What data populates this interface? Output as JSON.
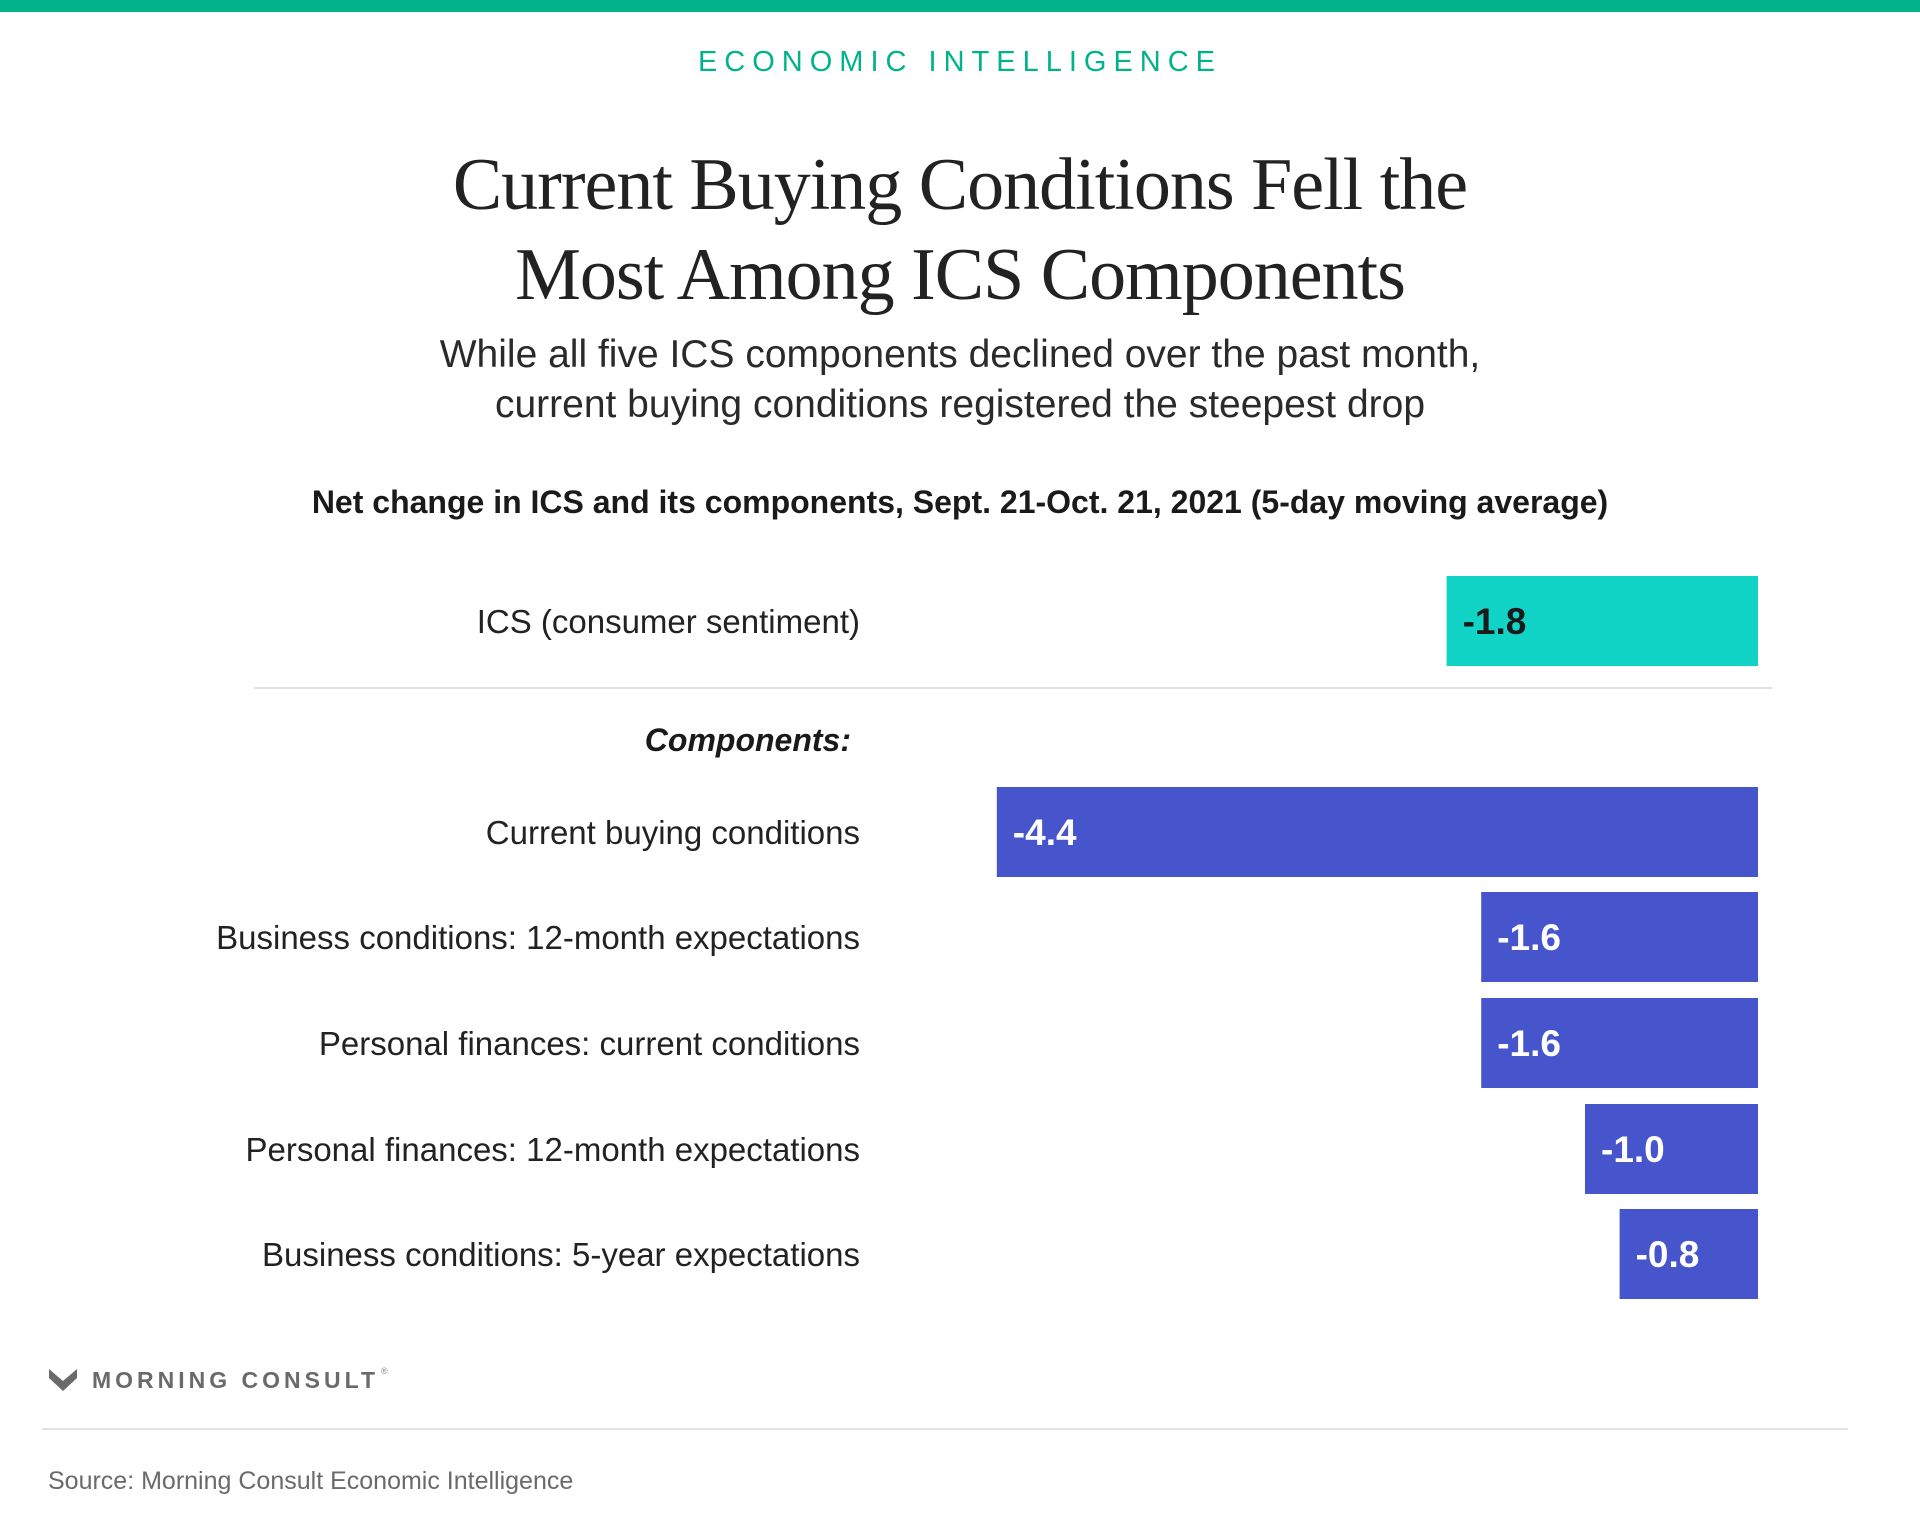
{
  "header": {
    "kicker": "ECONOMIC INTELLIGENCE",
    "title_lines": [
      "Current Buying Conditions Fell the",
      "Most Among ICS Components"
    ],
    "subtitle_lines": [
      "While all five ICS components declined over the past month,",
      "current buying conditions registered the steepest drop"
    ]
  },
  "colors": {
    "accent": "#00b38a",
    "ics_bar": "#12d4c6",
    "component_bar": "#4655cc",
    "divider": "#e2e2e2"
  },
  "chart_data": {
    "type": "bar",
    "orientation": "horizontal",
    "title": "Net change in ICS and its components, Sept. 21-Oct. 21, 2021 (5-day moving average)",
    "group_label": "Components:",
    "xlim": [
      -4.4,
      0
    ],
    "grid": false,
    "categories": [
      "ICS (consumer sentiment)",
      "Current buying conditions",
      "Business conditions: 12-month expectations",
      "Personal finances: current conditions",
      "Personal finances: 12-month expectations",
      "Business conditions: 5-year expectations"
    ],
    "values": [
      -1.8,
      -4.4,
      -1.6,
      -1.6,
      -1.0,
      -0.8
    ],
    "data_labels": [
      "-1.8",
      "-4.4",
      "-1.6",
      "-1.6",
      "-1.0",
      "-0.8"
    ]
  },
  "footer": {
    "logo_text": "MORNING CONSULT",
    "logo_mark": "®",
    "logo_icon": "morning-consult-m-icon",
    "source": "Source: Morning Consult Economic Intelligence"
  }
}
